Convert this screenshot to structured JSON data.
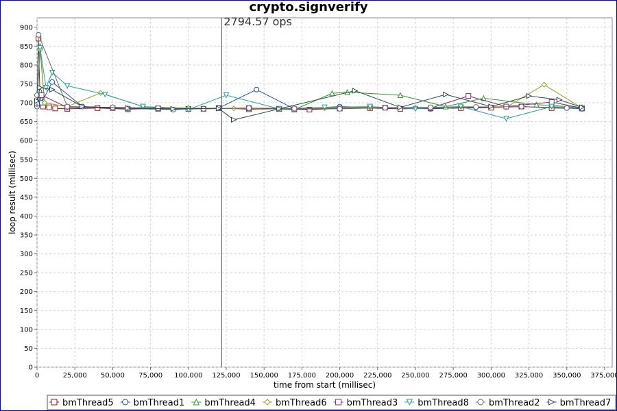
{
  "chart_data": {
    "type": "line",
    "title": "crypto.signverify",
    "xlabel": "time from start (millisec)",
    "ylabel": "loop result (millisec)",
    "xlim": [
      0,
      380000
    ],
    "ylim": [
      0,
      925
    ],
    "x_ticks": [
      "0",
      "25,000",
      "50,000",
      "75,000",
      "100,000",
      "125,000",
      "150,000",
      "175,000",
      "200,000",
      "225,000",
      "250,000",
      "275,000",
      "300,000",
      "325,000",
      "350,000",
      "375,000"
    ],
    "y_ticks": [
      "0",
      "50",
      "100",
      "150",
      "200",
      "250",
      "300",
      "350",
      "400",
      "450",
      "500",
      "550",
      "600",
      "650",
      "700",
      "750",
      "800",
      "850",
      "900"
    ],
    "grid": true,
    "legend_position": "bottom",
    "marker_line": {
      "x": 122000,
      "label": "2794.57 ops"
    },
    "series": [
      {
        "name": "bmThread5",
        "color": "#8b1a1a",
        "marker": "square",
        "x": [
          0,
          1000,
          2000,
          4000,
          8000,
          12000,
          20000,
          40000,
          60000,
          80000,
          100000,
          120000,
          140000,
          160000,
          180000,
          200000,
          220000,
          240000,
          260000,
          280000,
          300000,
          320000,
          340000,
          360000
        ],
        "y": [
          700,
          870,
          710,
          690,
          688,
          685,
          684,
          686,
          683,
          685,
          684,
          686,
          683,
          684,
          682,
          685,
          686,
          684,
          685,
          686,
          687,
          690,
          686,
          685
        ]
      },
      {
        "name": "bmThread1",
        "color": "#1f4e9a",
        "marker": "circle",
        "x": [
          0,
          1500,
          3000,
          10000,
          30000,
          60000,
          90000,
          120000,
          145000,
          170000,
          200000,
          230000,
          260000,
          290000,
          320000,
          350000,
          360000
        ],
        "y": [
          690,
          730,
          700,
          755,
          690,
          685,
          682,
          686,
          735,
          684,
          690,
          687,
          684,
          688,
          690,
          686,
          684
        ]
      },
      {
        "name": "bmThread4",
        "color": "#2e9b2e",
        "marker": "triangle-up",
        "x": [
          0,
          2000,
          5000,
          20000,
          50000,
          80000,
          110000,
          140000,
          170000,
          195000,
          205000,
          240000,
          270000,
          295000,
          330000,
          360000
        ],
        "y": [
          700,
          850,
          700,
          690,
          688,
          684,
          685,
          686,
          682,
          725,
          728,
          720,
          690,
          712,
          695,
          688
        ]
      },
      {
        "name": "bmThread6",
        "color": "#9a9a20",
        "marker": "diamond",
        "x": [
          0,
          2000,
          5000,
          20000,
          42000,
          70000,
          100000,
          130000,
          160000,
          190000,
          220000,
          250000,
          280000,
          310000,
          335000,
          360000
        ],
        "y": [
          695,
          840,
          700,
          690,
          726,
          690,
          686,
          685,
          684,
          686,
          688,
          687,
          690,
          688,
          748,
          686
        ]
      },
      {
        "name": "bmThread3",
        "color": "#7a2a7a",
        "marker": "square",
        "x": [
          0,
          3000,
          20000,
          50000,
          80000,
          110000,
          140000,
          170000,
          200000,
          230000,
          260000,
          285000,
          310000,
          340000,
          360000
        ],
        "y": [
          698,
          720,
          688,
          686,
          685,
          684,
          686,
          683,
          685,
          687,
          686,
          718,
          690,
          702,
          686
        ]
      },
      {
        "name": "bmThread8",
        "color": "#20a0a0",
        "marker": "triangle-down",
        "x": [
          0,
          2000,
          6000,
          10000,
          20000,
          45000,
          70000,
          100000,
          125000,
          160000,
          190000,
          220000,
          250000,
          280000,
          310000,
          340000,
          360000
        ],
        "y": [
          700,
          845,
          740,
          780,
          745,
          722,
          690,
          682,
          720,
          684,
          688,
          690,
          684,
          690,
          658,
          690,
          686
        ]
      },
      {
        "name": "bmThread2",
        "color": "#6a6a6a",
        "marker": "circle",
        "x": [
          0,
          1000,
          20000,
          50000,
          80000,
          110000,
          140000,
          170000,
          200000,
          230000,
          260000,
          290000,
          320000,
          350000,
          360000
        ],
        "y": [
          720,
          880,
          690,
          688,
          686,
          684,
          686,
          685,
          684,
          687,
          688,
          689,
          690,
          686,
          685
        ]
      },
      {
        "name": "bmThread7",
        "color": "#2a4a4a",
        "marker": "triangle-right",
        "x": [
          0,
          2000,
          10000,
          30000,
          60000,
          90000,
          120000,
          130000,
          160000,
          210000,
          240000,
          270000,
          300000,
          325000,
          345000,
          360000
        ],
        "y": [
          705,
          740,
          735,
          690,
          686,
          684,
          685,
          655,
          684,
          732,
          688,
          722,
          690,
          718,
          708,
          688
        ]
      }
    ]
  }
}
